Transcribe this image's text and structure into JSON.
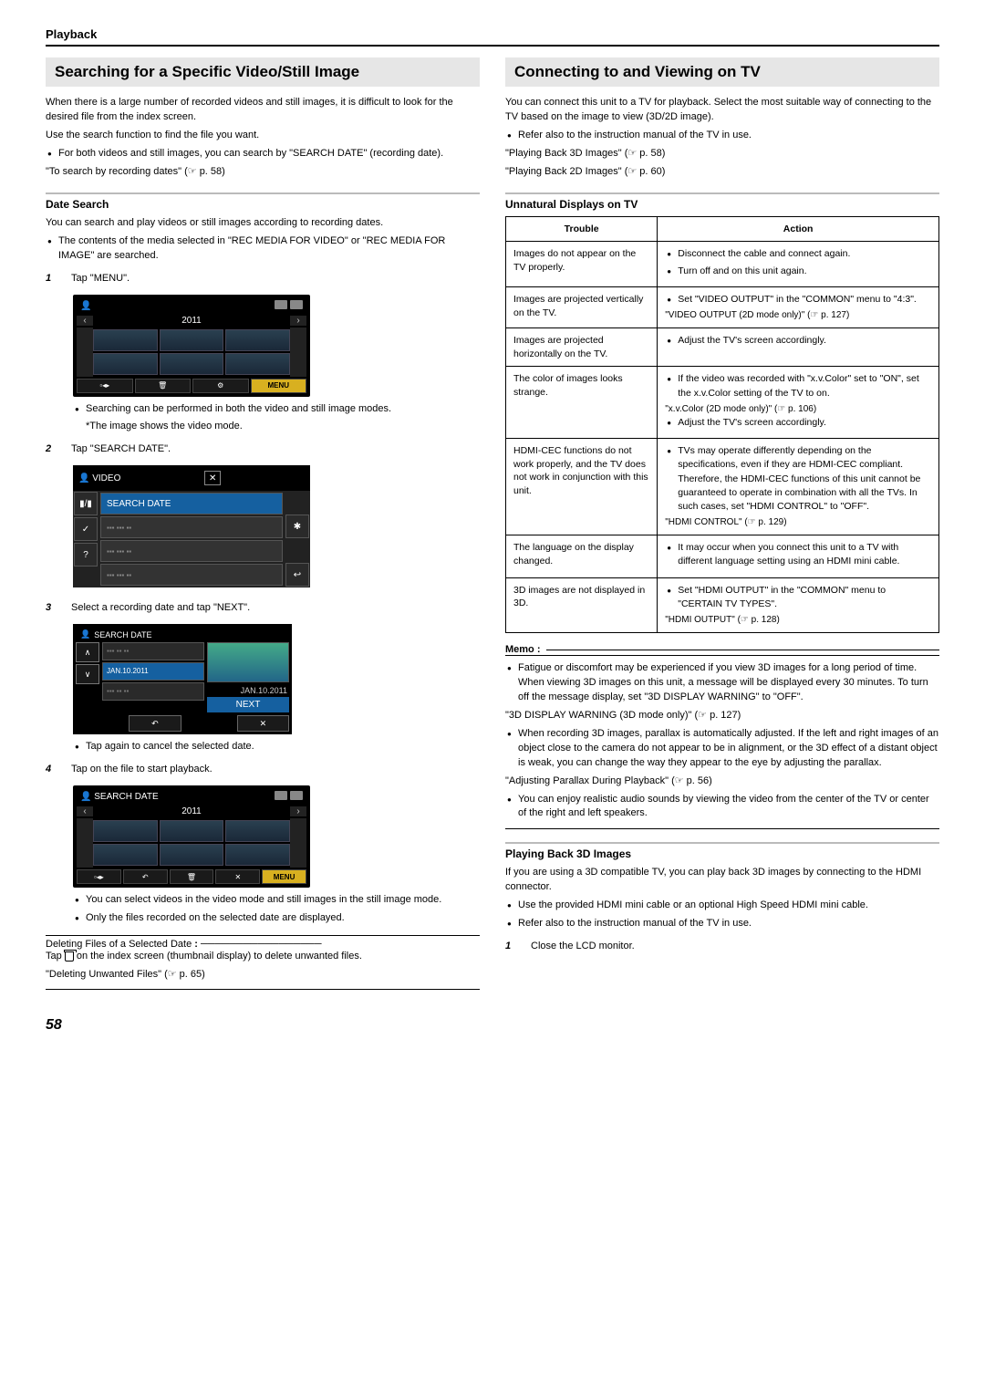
{
  "header": "Playback",
  "pageNumber": "58",
  "left": {
    "title": "Searching for a Specific Video/Still Image",
    "intro1": "When there is a large number of recorded videos and still images, it is difficult to look for the desired file from the index screen.",
    "intro2": "Use the search function to find the file you want.",
    "b1": "For both videos and still images, you can search by \"SEARCH DATE\" (recording date).",
    "ref1": "\"To search by recording dates\" (☞ p. 58)",
    "dateSearch": {
      "title": "Date Search",
      "p1": "You can search and play videos or still images according to recording dates.",
      "b1": "The contents of the media selected in \"REC MEDIA FOR VIDEO\" or \"REC MEDIA FOR IMAGE\" are searched.",
      "s1": "Tap \"MENU\".",
      "s1note1": "Searching can be performed in both the video and still image modes.",
      "s1note2": "*The image shows the video mode.",
      "s2": "Tap \"SEARCH DATE\".",
      "s3": "Select a recording date and tap \"NEXT\".",
      "s3note": "Tap again to cancel the selected date.",
      "s4": "Tap on the file to start playback.",
      "s4b1": "You can select videos in the video mode and still images in the still image mode.",
      "s4b2": "Only the files recorded on the selected date are displayed.",
      "del_title": "Deleting Files of a Selected Date",
      "del_body": "Tap    on the index screen (thumbnail display) to delete unwanted files.",
      "del_ref": "\"Deleting Unwanted Files\" (☞ p. 65)"
    },
    "fig1": {
      "year": "2011",
      "menu": "MENU"
    },
    "fig2": {
      "title": "VIDEO",
      "item": "SEARCH DATE"
    },
    "fig3": {
      "title": "SEARCH DATE",
      "sel": "JAN.10.2011",
      "date": "JAN.10.2011",
      "next": "NEXT"
    },
    "fig4": {
      "title": "SEARCH DATE",
      "year": "2011",
      "menu": "MENU"
    }
  },
  "right": {
    "title": "Connecting to and Viewing on TV",
    "p1": "You can connect this unit to a TV for playback. Select the most suitable way of connecting to the TV based on the image to view (3D/2D image).",
    "b1": "Refer also to the instruction manual of the TV in use.",
    "ref1": "\"Playing Back 3D Images\" (☞ p. 58)",
    "ref2": "\"Playing Back 2D Images\" (☞ p. 60)",
    "tblTitle": "Unnatural Displays on TV",
    "th1": "Trouble",
    "th2": "Action",
    "rows": [
      {
        "t": "Images do not appear on the TV properly.",
        "a": [
          "Disconnect the cable and connect again.",
          "Turn off and on this unit again."
        ]
      },
      {
        "t": "Images are projected vertically on the TV.",
        "a": [
          "Set \"VIDEO OUTPUT\" in the \"COMMON\" menu to \"4:3\"."
        ],
        "ref": "\"VIDEO OUTPUT (2D mode only)\" (☞ p. 127)"
      },
      {
        "t": "Images are projected horizontally on the TV.",
        "a": [
          "Adjust the TV's screen accordingly."
        ]
      },
      {
        "t": "The color of images looks strange.",
        "a": [
          "If the video was recorded with \"x.v.Color\" set to \"ON\", set the x.v.Color setting of the TV to on."
        ],
        "ref": "\"x.v.Color (2D mode only)\" (☞ p. 106)",
        "a2": [
          "Adjust the TV's screen accordingly."
        ]
      },
      {
        "t": "HDMI-CEC functions do not work properly, and the TV does not work in conjunction with this unit.",
        "a": [
          "TVs may operate differently depending on the specifications, even if they are HDMI-CEC compliant. Therefore, the HDMI-CEC functions of this unit cannot be guaranteed to operate in combination with all the TVs. In such cases, set \"HDMI CONTROL\" to \"OFF\"."
        ],
        "ref": "\"HDMI CONTROL\" (☞ p. 129)"
      },
      {
        "t": "The language on the display changed.",
        "a": [
          "It may occur when you connect this unit to a TV with different language setting using an HDMI mini cable."
        ]
      },
      {
        "t": "3D images are not displayed in 3D.",
        "a": [
          "Set \"HDMI OUTPUT\" in the \"COMMON\" menu to \"CERTAIN TV TYPES\"."
        ],
        "ref": "\"HDMI OUTPUT\" (☞ p. 128)"
      }
    ],
    "memoTitle": "Memo :",
    "m1": "Fatigue or discomfort may be experienced if you view 3D images for a long period of time. When viewing 3D images on this unit, a message will be displayed every 30 minutes. To turn off the message display, set \"3D DISPLAY WARNING\" to \"OFF\".",
    "mref1": "\"3D DISPLAY WARNING (3D mode only)\" (☞ p. 127)",
    "m2": "When recording 3D images, parallax is automatically adjusted. If the left and right images of an object close to the camera do not appear to be in alignment, or the 3D effect of a distant object is weak, you can change the way they appear to the eye by adjusting the parallax.",
    "mref2": "\"Adjusting Parallax During Playback\" (☞ p. 56)",
    "m3": "You can enjoy realistic audio sounds by viewing the video from the center of the TV or center of the right and left speakers.",
    "pb3d": {
      "title": "Playing Back 3D Images",
      "p1": "If you are using a 3D compatible TV, you can play back 3D images by connecting to the HDMI connector.",
      "b1": "Use the provided HDMI mini cable or an optional High Speed HDMI mini cable.",
      "b2": "Refer also to the instruction manual of the TV in use.",
      "s1": "Close the LCD monitor."
    }
  }
}
